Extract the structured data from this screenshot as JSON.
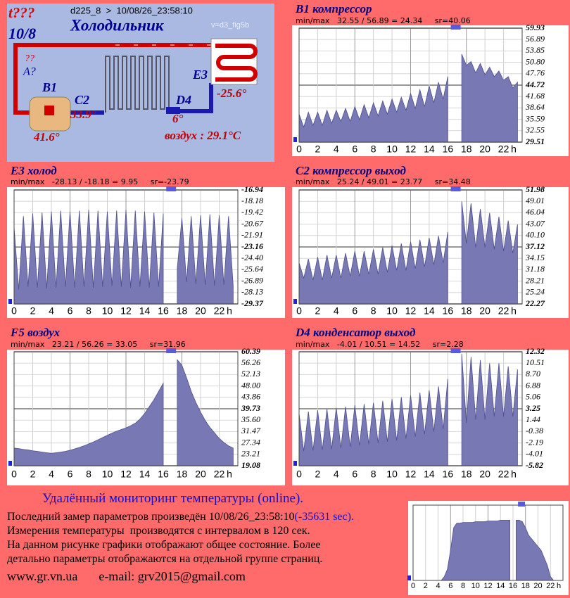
{
  "schematic": {
    "status": "t???",
    "date_short": "10/8",
    "header": "d225_8  >  10/08/26_23:58:10",
    "title": "Холодильник",
    "version": "v=d3_fig5b",
    "unknown_top": "??",
    "unknown_label": "A?",
    "sensors": [
      {
        "label": "B1",
        "reading": "41.6°"
      },
      {
        "label": "C2",
        "reading": "33.9°"
      },
      {
        "label": "D4",
        "reading": "6°"
      },
      {
        "label": "E3",
        "reading": "-25.6°"
      }
    ],
    "air": "воздух : 29.1°C"
  },
  "chart_data": [
    {
      "type": "area",
      "title": "B1 компрессор",
      "stats": "min/max   32.55 / 56.89 = 24.34     sr=40.06",
      "x": [
        0,
        0.5,
        1,
        1.5,
        2,
        2.5,
        3,
        3.5,
        4,
        4.5,
        5,
        5.5,
        6,
        6.5,
        7,
        7.5,
        8,
        8.5,
        9,
        9.5,
        10,
        10.5,
        11,
        11.5,
        12,
        12.5,
        13,
        13.5,
        14,
        14.5,
        15,
        15.5,
        16,
        16.5,
        17,
        17.5,
        18,
        18.5,
        19,
        19.5,
        20,
        20.5,
        21,
        21.5,
        22,
        22.5,
        23,
        23.5
      ],
      "values": [
        37,
        33.5,
        37.5,
        34,
        37.5,
        34,
        38,
        34.5,
        38,
        35,
        38.5,
        35,
        39,
        35.5,
        39.5,
        36,
        40,
        36.5,
        40.5,
        37,
        41,
        37.5,
        41.5,
        38,
        42.5,
        38.5,
        43.5,
        39,
        44.5,
        40,
        45.5,
        41,
        47,
        null,
        null,
        53,
        50,
        51,
        48,
        50.5,
        47.5,
        49.5,
        47,
        48.5,
        46,
        47,
        44,
        45.5
      ],
      "color": "#7878b4",
      "xlim": [
        0,
        24
      ],
      "xticks": [
        0,
        2,
        4,
        6,
        8,
        10,
        12,
        14,
        16,
        18,
        20,
        22
      ],
      "x_unit": "h",
      "ylim": [
        29.51,
        59.93
      ],
      "yticks": [
        59.93,
        56.89,
        53.85,
        {
          "value": 50.8,
          "label": "50.80"
        },
        47.76,
        44.72,
        41.68,
        38.64,
        35.59,
        32.55,
        29.51
      ],
      "grid": true
    },
    {
      "type": "area",
      "title": "E3 холод",
      "stats": "min/max   -28.13 / -18.18 = 9.95     sr=-23.79",
      "x": [
        0,
        0.5,
        1,
        1.5,
        2,
        2.5,
        3,
        3.5,
        4,
        4.5,
        5,
        5.5,
        6,
        6.5,
        7,
        7.5,
        8,
        8.5,
        9,
        9.5,
        10,
        10.5,
        11,
        11.5,
        12,
        12.5,
        13,
        13.5,
        14,
        14.5,
        15,
        15.5,
        16,
        16.5,
        17,
        17.5,
        18,
        18.5,
        19,
        19.5,
        20,
        20.5,
        21,
        21.5,
        22,
        22.5,
        23,
        23.5
      ],
      "values": [
        -21,
        -27.8,
        -19.8,
        -27.5,
        -19.5,
        -27.6,
        -19.4,
        -27.7,
        -19.3,
        -27.6,
        -19.2,
        -27.5,
        -19.3,
        -27.6,
        -19.2,
        -27.5,
        -19.1,
        -27.6,
        -19.2,
        -27.5,
        -19.3,
        -27.4,
        -19.2,
        -27.5,
        -19.1,
        -27.6,
        -19.2,
        -27.5,
        -19.3,
        -27.6,
        -19.4,
        -27.5,
        -19.5,
        null,
        null,
        -25.5,
        -20,
        -27,
        -19.8,
        -27.2,
        -19.7,
        -27.3,
        -19.6,
        -27.4,
        -19.7,
        -27.3,
        -19.8,
        -27.4
      ],
      "color": "#7878b4",
      "xlim": [
        0,
        24
      ],
      "xticks": [
        0,
        2,
        4,
        6,
        8,
        10,
        12,
        14,
        16,
        18,
        20,
        22
      ],
      "x_unit": "h",
      "ylim": [
        -29.37,
        -16.94
      ],
      "yticks": [
        -16.94,
        -18.18,
        -19.42,
        -20.67,
        -21.91,
        -23.16,
        {
          "value": -24.4,
          "label": "-24.40"
        },
        -25.64,
        -26.89,
        -28.13,
        -29.37
      ],
      "grid": true
    },
    {
      "type": "area",
      "title": "C2 компрессор выход",
      "stats": "min/max   25.24 / 49.01 = 23.77     sr=34.48",
      "x": [
        0,
        0.5,
        1,
        1.5,
        2,
        2.5,
        3,
        3.5,
        4,
        4.5,
        5,
        5.5,
        6,
        6.5,
        7,
        7.5,
        8,
        8.5,
        9,
        9.5,
        10,
        10.5,
        11,
        11.5,
        12,
        12.5,
        13,
        13.5,
        14,
        14.5,
        15,
        15.5,
        16,
        16.5,
        17,
        17.5,
        18,
        18.5,
        19,
        19.5,
        20,
        20.5,
        21,
        21.5,
        22,
        22.5,
        23,
        23.5
      ],
      "values": [
        33,
        29,
        34,
        28.5,
        34.5,
        28.5,
        35,
        29,
        35,
        29,
        35.5,
        29.5,
        36,
        29.5,
        36,
        30,
        36.5,
        30,
        37,
        30.5,
        37.5,
        31,
        38,
        31,
        38.5,
        31.5,
        39,
        32,
        39.5,
        32.5,
        40,
        33,
        41,
        null,
        null,
        49,
        38,
        48.5,
        37,
        47,
        37,
        46,
        36.5,
        45,
        36,
        44,
        35.5,
        43
      ],
      "color": "#7878b4",
      "xlim": [
        0,
        24
      ],
      "xticks": [
        0,
        2,
        4,
        6,
        8,
        10,
        12,
        14,
        16,
        18,
        20,
        22
      ],
      "x_unit": "h",
      "ylim": [
        22.27,
        51.98
      ],
      "yticks": [
        51.98,
        49.01,
        46.04,
        43.07,
        {
          "value": 40.1,
          "label": "40.10"
        },
        37.12,
        34.15,
        31.18,
        28.21,
        25.24,
        22.27
      ],
      "grid": true
    },
    {
      "type": "area",
      "title": "F5 воздух",
      "stats": "min/max   23.21 / 56.26 = 33.05     sr=31.96",
      "x": [
        0,
        0.5,
        1,
        1.5,
        2,
        2.5,
        3,
        3.5,
        4,
        4.5,
        5,
        5.5,
        6,
        6.5,
        7,
        7.5,
        8,
        8.5,
        9,
        9.5,
        10,
        10.5,
        11,
        11.5,
        12,
        12.5,
        13,
        13.5,
        14,
        14.5,
        15,
        15.5,
        16,
        16.5,
        17,
        17.5,
        18,
        18.5,
        19,
        19.5,
        20,
        20.5,
        21,
        21.5,
        22,
        22.5,
        23,
        23.5
      ],
      "values": [
        25.5,
        25.3,
        25,
        24.8,
        24.5,
        24.3,
        24,
        23.8,
        23.6,
        23.8,
        24,
        24.3,
        24.7,
        25.2,
        25.7,
        26.3,
        27,
        27.7,
        28.5,
        29.3,
        30.1,
        30.9,
        31.6,
        32.2,
        32.8,
        33.6,
        34.5,
        36,
        38,
        40.5,
        43,
        46,
        49,
        null,
        null,
        57.5,
        55.5,
        51,
        46,
        42,
        38.5,
        35.5,
        33,
        31,
        29,
        27.5,
        26.3,
        25.5
      ],
      "color": "#7878b4",
      "xlim": [
        0,
        24
      ],
      "xticks": [
        0,
        2,
        4,
        6,
        8,
        10,
        12,
        14,
        16,
        18,
        20,
        22
      ],
      "x_unit": "h",
      "ylim": [
        19.08,
        60.39
      ],
      "yticks": [
        60.39,
        56.26,
        52.13,
        {
          "value": 48,
          "label": "48.00"
        },
        43.86,
        39.73,
        {
          "value": 35.6,
          "label": "35.60"
        },
        31.47,
        27.34,
        23.21,
        19.08
      ],
      "grid": true
    },
    {
      "type": "area",
      "title": "D4 конденсатор выход",
      "stats": "min/max   -4.01 / 10.51 = 14.52     sr=2.28",
      "x": [
        0,
        0.5,
        1,
        1.5,
        2,
        2.5,
        3,
        3.5,
        4,
        4.5,
        5,
        5.5,
        6,
        6.5,
        7,
        7.5,
        8,
        8.5,
        9,
        9.5,
        10,
        10.5,
        11,
        11.5,
        12,
        12.5,
        13,
        13.5,
        14,
        14.5,
        15,
        15.5,
        16,
        16.5,
        17,
        17.5,
        18,
        18.5,
        19,
        19.5,
        20,
        20.5,
        21,
        21.5,
        22,
        22.5,
        23,
        23.5
      ],
      "values": [
        2.5,
        -3.5,
        2.8,
        -3.4,
        3,
        -3.3,
        3.2,
        -3.2,
        3.4,
        -3,
        3.6,
        -2.8,
        3.8,
        -2.6,
        4,
        -2.4,
        4.2,
        -2.2,
        4.5,
        -2,
        4.8,
        -1.8,
        5.1,
        -1.5,
        5.4,
        -1.2,
        5.8,
        -0.8,
        6.2,
        -0.4,
        6.8,
        0,
        8,
        null,
        null,
        12,
        1,
        11.5,
        1.5,
        11,
        1.5,
        10.5,
        2,
        10.5,
        2,
        10,
        2,
        9.5
      ],
      "color": "#7878b4",
      "xlim": [
        0,
        24
      ],
      "xticks": [
        0,
        2,
        4,
        6,
        8,
        10,
        12,
        14,
        16,
        18,
        20,
        22
      ],
      "x_unit": "h",
      "ylim": [
        -5.82,
        12.32
      ],
      "yticks": [
        12.32,
        10.51,
        {
          "value": 8.7,
          "label": "8.70"
        },
        6.88,
        5.06,
        3.25,
        1.44,
        -0.38,
        -2.19,
        -4.01,
        -5.82
      ],
      "grid": true
    },
    {
      "type": "area",
      "x": [
        0,
        0.5,
        1,
        1.5,
        2,
        2.5,
        3,
        3.5,
        4,
        4.5,
        5,
        5.5,
        6,
        6.5,
        7,
        7.5,
        8,
        8.5,
        9,
        9.5,
        10,
        10.5,
        11,
        11.5,
        12,
        12.5,
        13,
        13.5,
        14,
        14.5,
        15,
        15.5,
        16,
        16.5,
        17,
        17.5,
        18,
        18.5,
        19,
        19.5,
        20,
        20.5,
        21,
        21.5,
        22,
        22.5,
        23,
        23.5
      ],
      "values": [
        0,
        0,
        0,
        0,
        0,
        0,
        0,
        0,
        0,
        0,
        5,
        15,
        40,
        70,
        76,
        76,
        77,
        77,
        77,
        77,
        78,
        78,
        78,
        78,
        79,
        79,
        79,
        79,
        80,
        80,
        80,
        80,
        null,
        80,
        80,
        78,
        70,
        60,
        55,
        50,
        45,
        40,
        30,
        20,
        5,
        0,
        0,
        0
      ],
      "color": "#7878b4",
      "xlim": [
        0,
        24
      ],
      "xticks": [
        0,
        2,
        4,
        6,
        8,
        10,
        12,
        14,
        16,
        18,
        20,
        22
      ],
      "x_unit": "h",
      "ylim": [
        0,
        100
      ],
      "grid": true
    }
  ],
  "footer": {
    "heading": "Удалённый мониторинг температуры (online).",
    "last_measure": "Последний замер параметров произведён 10/08/26_23:58:10",
    "offset": "(-35631 sec).",
    "lines": [
      "Измерения температуры  производятся с интервалом в 120 сек.",
      "На данном рисунке графики отображают общее состояние. Более",
      "детально параметры отображаются на отдельной группе страниц."
    ],
    "website": "www.gr.vn.ua",
    "email": "e-mail: grv2015@gmail.com"
  }
}
